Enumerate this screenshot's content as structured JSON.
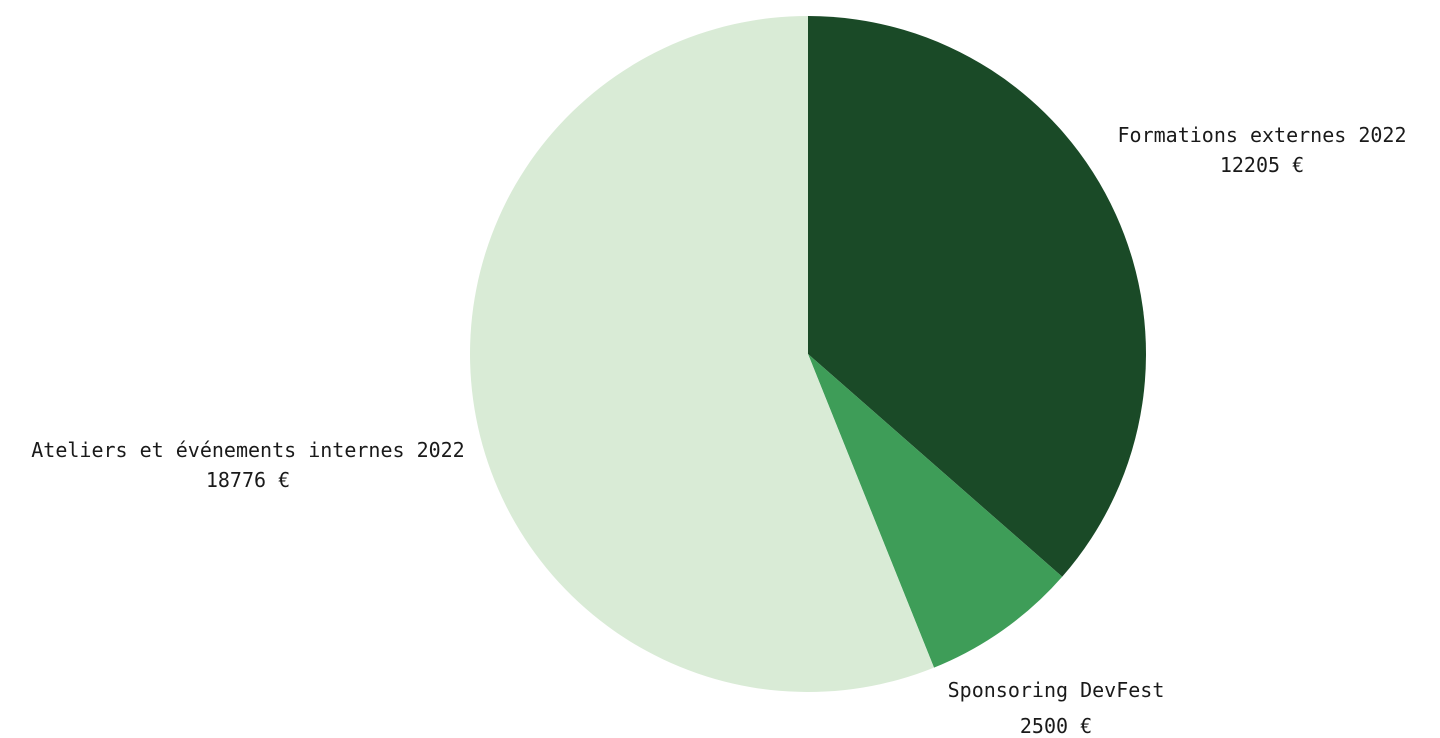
{
  "chart_data": {
    "type": "pie",
    "title": "",
    "start_angle_deg": 0,
    "direction": "clockwise",
    "slices": [
      {
        "label": "Formations externes 2022",
        "value": 12205,
        "value_label": "12205 €",
        "color": "#1a4a27"
      },
      {
        "label": "Sponsoring DevFest",
        "value": 2500,
        "value_label": "2500 €",
        "color": "#3e9d58"
      },
      {
        "label": "Ateliers et événements internes 2022",
        "value": 18776,
        "value_label": "18776 €",
        "color": "#d9ebd6"
      }
    ]
  }
}
